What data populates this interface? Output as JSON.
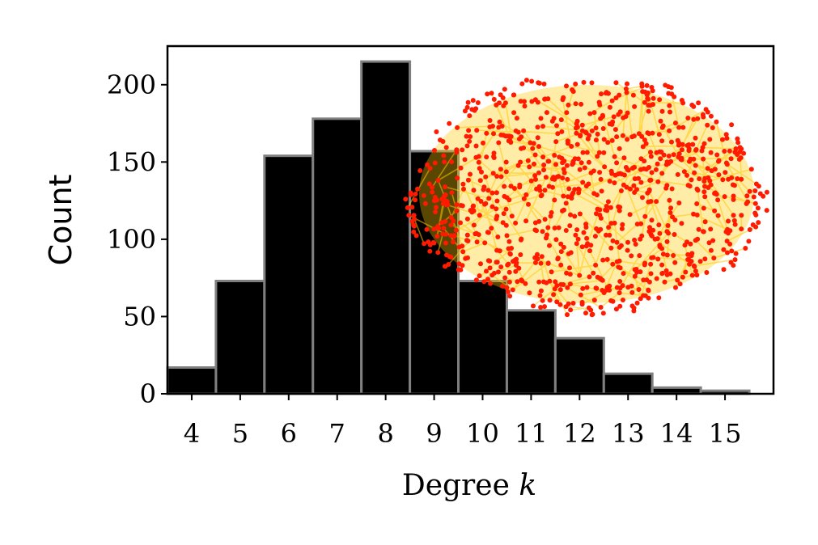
{
  "chart_data": {
    "type": "bar",
    "categories": [
      "4",
      "5",
      "6",
      "7",
      "8",
      "9",
      "10",
      "11",
      "12",
      "13",
      "14",
      "15"
    ],
    "values": [
      17,
      73,
      154,
      178,
      215,
      157,
      73,
      54,
      36,
      13,
      4,
      2
    ],
    "xlabel": "Degree k",
    "xlabel_text": "Degree ",
    "xlabel_var": "k",
    "ylabel": "Count",
    "ylim": [
      0,
      225
    ],
    "yticks": [
      0,
      50,
      100,
      150,
      200
    ],
    "xlim": [
      3.5,
      16
    ],
    "grid": false,
    "bar_color": "#000000",
    "bar_edge_color": "#808080",
    "inset": {
      "type": "network",
      "node_color": "#ff1a00",
      "edge_color": "#ffc800"
    }
  }
}
